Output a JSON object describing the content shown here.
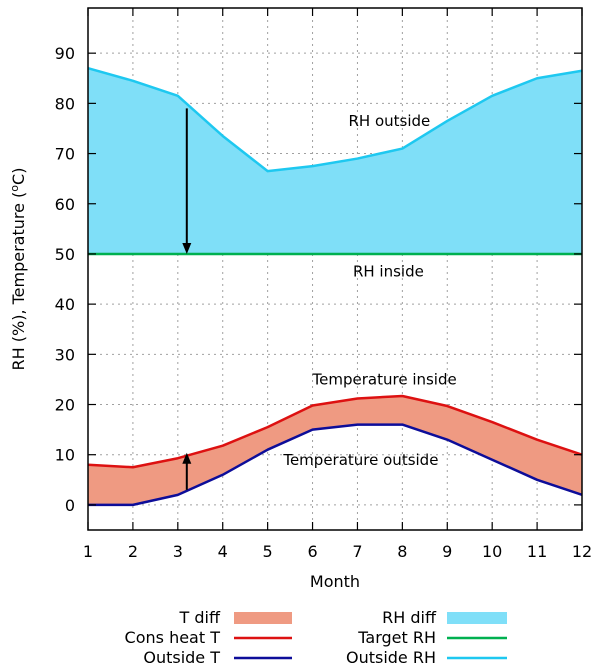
{
  "chart_data": {
    "type": "area",
    "xlabel": "Month",
    "ylabel": "RH (%), Temperature (",
    "ylabel_sup": "o",
    "ylabel_tail": "C)",
    "xlim": [
      1,
      12
    ],
    "ylim": [
      -5,
      99
    ],
    "x_ticks": [
      1,
      2,
      3,
      4,
      5,
      6,
      7,
      8,
      9,
      10,
      11,
      12
    ],
    "y_ticks": [
      0,
      10,
      20,
      30,
      40,
      50,
      60,
      70,
      80,
      90
    ],
    "grid": true,
    "x": [
      1,
      2,
      3,
      4,
      5,
      6,
      7,
      8,
      9,
      10,
      11,
      12
    ],
    "series": [
      {
        "name": "T diff",
        "kind": "fill",
        "color": "#ef9a82",
        "lower": [
          0,
          0,
          2,
          6,
          11,
          15,
          16,
          16,
          13,
          9,
          5,
          2
        ],
        "upper": [
          8,
          7.5,
          9.3,
          11.8,
          15.5,
          19.8,
          21.2,
          21.7,
          19.7,
          16.5,
          13,
          10
        ]
      },
      {
        "name": "Cons heat T",
        "kind": "line",
        "color": "#dd1111",
        "values": [
          8,
          7.5,
          9.3,
          11.8,
          15.5,
          19.8,
          21.2,
          21.7,
          19.7,
          16.5,
          13,
          10
        ]
      },
      {
        "name": "Outside T",
        "kind": "line",
        "color": "#0d0d99",
        "values": [
          0,
          0,
          2,
          6,
          11,
          15,
          16,
          16,
          13,
          9,
          5,
          2
        ]
      },
      {
        "name": "RH diff",
        "kind": "fill",
        "color": "#7fdff8",
        "lower": [
          50,
          50,
          50,
          50,
          50,
          50,
          50,
          50,
          50,
          50,
          50,
          50
        ],
        "upper": [
          87,
          84.5,
          81.5,
          73.5,
          66.5,
          67.5,
          69,
          71,
          76.5,
          81.5,
          85,
          86.5
        ]
      },
      {
        "name": "Target RH",
        "kind": "line",
        "color": "#00b050",
        "values": [
          50,
          50,
          50,
          50,
          50,
          50,
          50,
          50,
          50,
          50,
          50,
          50
        ]
      },
      {
        "name": "Outside RH",
        "kind": "line",
        "color": "#1ec8f0",
        "values": [
          87,
          84.5,
          81.5,
          73.5,
          66.5,
          67.5,
          69,
          71,
          76.5,
          81.5,
          85,
          86.5
        ]
      }
    ],
    "annotations": [
      {
        "text": "RH outside",
        "x": 6.8,
        "y": 75.5
      },
      {
        "text": "RH inside",
        "x": 6.9,
        "y": 45.5
      },
      {
        "text": "Temperature inside",
        "x": 6.0,
        "y": 24.0
      },
      {
        "text": "Temperature outside",
        "x": 5.35,
        "y": 8.0
      }
    ],
    "arrows": [
      {
        "x": 3.2,
        "from": 79,
        "to": 50
      },
      {
        "x": 3.2,
        "from": 3,
        "to": 10.4
      }
    ],
    "legend_position": "bottom",
    "legend": [
      {
        "name": "T diff",
        "kind": "fill",
        "color": "#ef9a82"
      },
      {
        "name": "Cons heat T",
        "kind": "line",
        "color": "#dd1111"
      },
      {
        "name": "Outside T",
        "kind": "line",
        "color": "#0d0d99"
      },
      {
        "name": "RH diff",
        "kind": "fill",
        "color": "#7fdff8"
      },
      {
        "name": "Target RH",
        "kind": "line",
        "color": "#00b050"
      },
      {
        "name": "Outside RH",
        "kind": "line",
        "color": "#1ec8f0"
      }
    ]
  }
}
